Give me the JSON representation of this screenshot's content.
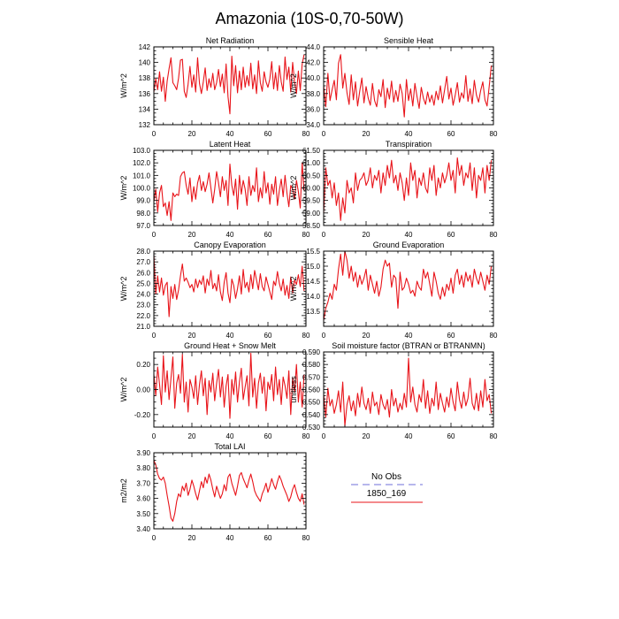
{
  "title": "Amazonia (10S-0,70-50W)",
  "colors": {
    "series": "#e8141a",
    "obs": "#9f9fe6",
    "axis": "#000000"
  },
  "legend": {
    "obs_label": "No Obs",
    "series_label": "1850_169",
    "placement": "below right panels"
  },
  "chart_data": [
    {
      "type": "line",
      "title": "Net Radiation",
      "ylabel": "W/m^2",
      "xlim": [
        0,
        80
      ],
      "ylim": [
        132,
        142
      ],
      "xticks": [
        0,
        20,
        40,
        60,
        80
      ],
      "yticks": [
        132,
        134,
        136,
        138,
        140,
        142
      ],
      "ytick_labels": [
        "132",
        "134",
        "136",
        "138",
        "140",
        "142"
      ],
      "series": [
        {
          "name": "1850_169",
          "values": [
            136.2,
            137.9,
            136.5,
            138.8,
            136.3,
            138.1,
            135.0,
            137.6,
            139.2,
            140.6,
            137.4,
            137.0,
            136.5,
            138.0,
            140.3,
            140.4,
            136.3,
            135.5,
            137.2,
            139.5,
            136.8,
            138.4,
            136.2,
            140.6,
            137.3,
            136.0,
            137.5,
            139.3,
            136.4,
            137.9,
            136.8,
            138.6,
            136.5,
            137.4,
            139.1,
            136.9,
            138.5,
            136.1,
            139.8,
            135.6,
            133.4,
            140.8,
            137.0,
            139.6,
            136.1,
            138.9,
            136.5,
            139.4,
            136.8,
            138.3,
            137.0,
            139.9,
            136.6,
            138.4,
            136.0,
            140.2,
            137.4,
            136.3,
            138.8,
            137.5,
            136.8,
            137.9,
            140.1,
            136.6,
            138.7,
            136.4,
            139.6,
            137.5,
            136.3,
            140.7,
            137.8,
            139.4,
            136.2,
            140.0,
            137.5,
            136.0,
            138.9,
            136.4,
            139.8,
            141.0
          ]
        }
      ]
    },
    {
      "type": "line",
      "title": "Sensible Heat",
      "ylabel": "W/m^2",
      "xlim": [
        0,
        80
      ],
      "ylim": [
        34,
        44
      ],
      "xticks": [
        0,
        20,
        40,
        60,
        80
      ],
      "yticks": [
        34,
        36,
        38,
        40,
        42,
        44
      ],
      "ytick_labels": [
        "34.0",
        "36.0",
        "38.0",
        "40.0",
        "42.0",
        "44.0"
      ],
      "series": [
        {
          "name": "1850_169",
          "values": [
            39.0,
            36.3,
            40.6,
            37.1,
            38.5,
            39.7,
            37.2,
            41.9,
            43.0,
            38.7,
            40.6,
            38.1,
            36.6,
            40.4,
            37.2,
            39.5,
            36.4,
            38.3,
            40.0,
            36.8,
            38.9,
            37.4,
            36.5,
            39.3,
            37.1,
            36.3,
            38.5,
            37.6,
            39.8,
            36.2,
            38.7,
            37.3,
            39.6,
            36.9,
            38.4,
            37.0,
            39.2,
            38.0,
            35.0,
            39.8,
            37.1,
            38.6,
            36.4,
            39.3,
            37.6,
            36.1,
            38.8,
            37.4,
            36.6,
            38.2,
            36.9,
            37.8,
            36.5,
            38.3,
            37.2,
            39.0,
            36.8,
            38.5,
            40.2,
            37.3,
            38.7,
            36.5,
            37.8,
            39.4,
            36.9,
            38.1,
            37.4,
            40.3,
            37.0,
            38.6,
            36.7,
            39.7,
            37.8,
            36.9,
            38.4,
            39.5,
            37.2,
            36.4,
            38.9,
            41.6
          ]
        }
      ]
    },
    {
      "type": "line",
      "title": "Latent Heat",
      "ylabel": "W/m^2",
      "xlim": [
        0,
        80
      ],
      "ylim": [
        97,
        103
      ],
      "xticks": [
        0,
        20,
        40,
        60,
        80
      ],
      "yticks": [
        97,
        98,
        99,
        100,
        101,
        102,
        103
      ],
      "ytick_labels": [
        "97.0",
        "98.0",
        "99.0",
        "100.0",
        "101.0",
        "102.0",
        "103.0"
      ],
      "series": [
        {
          "name": "1850_169",
          "values": [
            98.9,
            99.9,
            98.1,
            99.6,
            100.2,
            98.5,
            98.8,
            97.8,
            98.9,
            97.4,
            99.6,
            99.3,
            99.5,
            99.4,
            100.9,
            101.2,
            101.3,
            100.2,
            99.5,
            100.8,
            98.9,
            100.1,
            99.1,
            100.4,
            101.0,
            99.8,
            100.5,
            99.7,
            100.3,
            101.2,
            100.0,
            98.8,
            99.9,
            101.3,
            100.4,
            99.3,
            100.9,
            99.8,
            100.6,
            98.6,
            101.9,
            100.2,
            99.4,
            100.7,
            98.3,
            101.0,
            99.5,
            100.6,
            99.9,
            98.6,
            100.9,
            99.4,
            100.2,
            99.7,
            101.6,
            98.9,
            100.0,
            99.2,
            101.3,
            99.6,
            100.4,
            98.7,
            100.3,
            99.5,
            100.9,
            98.6,
            99.8,
            100.7,
            99.3,
            101.0,
            99.6,
            98.5,
            100.2,
            99.9,
            99.1,
            100.6,
            99.7,
            98.4,
            102.0,
            99.8
          ]
        }
      ]
    },
    {
      "type": "line",
      "title": "Transpiration",
      "ylabel": "W/m^2",
      "xlim": [
        0,
        80
      ],
      "ylim": [
        58.5,
        61.5
      ],
      "xticks": [
        0,
        20,
        40,
        60,
        80
      ],
      "yticks": [
        58.5,
        59.0,
        59.5,
        60.0,
        60.5,
        61.0,
        61.5
      ],
      "ytick_labels": [
        "58.50",
        "59.00",
        "59.50",
        "60.00",
        "60.50",
        "61.00",
        "61.50"
      ],
      "series": [
        {
          "name": "1850_169",
          "values": [
            59.0,
            60.8,
            60.1,
            60.3,
            59.6,
            60.2,
            59.3,
            59.8,
            58.7,
            59.6,
            59.0,
            60.3,
            59.8,
            60.0,
            59.4,
            60.6,
            59.9,
            60.3,
            60.4,
            60.6,
            60.1,
            60.3,
            60.8,
            60.0,
            60.5,
            60.3,
            60.7,
            59.8,
            60.6,
            60.1,
            60.9,
            60.4,
            61.1,
            60.2,
            60.5,
            59.9,
            60.6,
            60.2,
            59.5,
            60.4,
            59.7,
            61.0,
            60.3,
            60.7,
            59.6,
            60.4,
            60.1,
            60.6,
            60.0,
            59.8,
            60.8,
            60.3,
            60.9,
            59.7,
            60.4,
            60.0,
            60.6,
            60.2,
            60.5,
            61.0,
            60.3,
            60.7,
            59.8,
            61.2,
            60.5,
            60.9,
            60.1,
            60.6,
            60.4,
            61.0,
            59.9,
            60.8,
            59.6,
            60.5,
            60.3,
            60.8,
            59.8,
            60.9,
            60.3,
            61.1
          ]
        }
      ]
    },
    {
      "type": "line",
      "title": "Canopy Evaporation",
      "ylabel": "W/m^2",
      "xlim": [
        0,
        80
      ],
      "ylim": [
        21,
        28
      ],
      "xticks": [
        0,
        20,
        40,
        60,
        80
      ],
      "yticks": [
        21,
        22,
        23,
        24,
        25,
        26,
        27,
        28
      ],
      "ytick_labels": [
        "21.0",
        "22.0",
        "23.0",
        "24.0",
        "25.0",
        "26.0",
        "27.0",
        "28.0"
      ],
      "series": [
        {
          "name": "1850_169",
          "values": [
            27.6,
            24.0,
            25.7,
            24.2,
            25.5,
            23.9,
            24.8,
            25.1,
            21.9,
            24.7,
            23.6,
            24.9,
            23.5,
            24.4,
            25.7,
            26.8,
            25.2,
            25.5,
            25.1,
            24.6,
            24.9,
            24.2,
            25.4,
            24.6,
            25.3,
            24.9,
            25.7,
            24.1,
            25.4,
            24.8,
            26.2,
            24.5,
            25.0,
            24.3,
            25.8,
            24.2,
            23.4,
            25.1,
            26.0,
            24.1,
            23.2,
            25.4,
            24.8,
            23.6,
            24.5,
            25.7,
            24.0,
            26.3,
            24.6,
            25.1,
            24.2,
            25.8,
            24.5,
            26.2,
            25.3,
            24.4,
            25.9,
            24.7,
            24.3,
            25.6,
            24.9,
            24.2,
            23.5,
            25.2,
            24.8,
            26.1,
            25.0,
            24.3,
            25.4,
            23.9,
            24.8,
            23.6,
            25.6,
            24.1,
            25.3,
            24.9,
            25.8,
            24.7,
            26.6,
            24.3
          ]
        }
      ]
    },
    {
      "type": "line",
      "title": "Ground Evaporation",
      "ylabel": "W/m^2",
      "xlim": [
        0,
        80
      ],
      "ylim": [
        13,
        15.5
      ],
      "xticks": [
        0,
        20,
        40,
        60,
        80
      ],
      "yticks": [
        13.5,
        14.0,
        14.5,
        15.0,
        15.5
      ],
      "ytick_labels": [
        "13.5",
        "14.0",
        "14.5",
        "15.0",
        "15.5"
      ],
      "series": [
        {
          "name": "1850_169",
          "values": [
            13.2,
            13.6,
            13.8,
            14.1,
            13.9,
            14.4,
            14.2,
            14.9,
            15.4,
            14.7,
            15.5,
            15.2,
            14.6,
            15.0,
            14.5,
            14.8,
            14.3,
            14.7,
            14.4,
            14.6,
            14.9,
            14.2,
            14.7,
            14.4,
            14.1,
            14.5,
            14.0,
            14.3,
            14.9,
            15.2,
            15.0,
            15.1,
            14.3,
            14.7,
            14.6,
            13.6,
            14.8,
            14.2,
            14.3,
            14.6,
            14.4,
            14.1,
            14.2,
            14.0,
            14.5,
            14.3,
            14.2,
            14.9,
            14.6,
            14.8,
            14.4,
            14.0,
            14.8,
            14.5,
            14.1,
            13.9,
            14.3,
            14.0,
            14.4,
            14.2,
            14.6,
            14.1,
            14.7,
            14.9,
            14.4,
            14.7,
            14.3,
            14.8,
            14.5,
            14.7,
            14.3,
            14.9,
            14.6,
            14.4,
            14.8,
            14.5,
            14.2,
            14.7,
            14.4,
            15.0
          ]
        }
      ]
    },
    {
      "type": "line",
      "title": "Ground Heat + Snow Melt",
      "ylabel": "W/m^2",
      "xlim": [
        0,
        80
      ],
      "ylim": [
        -0.3,
        0.3
      ],
      "xticks": [
        0,
        20,
        40,
        60,
        80
      ],
      "yticks": [
        -0.2,
        0.0,
        0.2
      ],
      "ytick_labels": [
        "-0.20",
        "0.00",
        "0.20"
      ],
      "series": [
        {
          "name": "1850_169",
          "values": [
            0.12,
            -0.05,
            0.18,
            0.04,
            -0.12,
            0.27,
            -0.02,
            0.15,
            -0.08,
            0.09,
            0.26,
            -0.15,
            0.05,
            0.12,
            -0.03,
            0.28,
            -0.1,
            0.06,
            -0.18,
            0.08,
            0.02,
            -0.07,
            0.11,
            -0.12,
            0.04,
            0.15,
            -0.05,
            0.09,
            -0.2,
            0.07,
            -0.02,
            0.13,
            -0.09,
            0.05,
            0.16,
            -0.06,
            0.1,
            -0.14,
            0.03,
            0.12,
            -0.23,
            0.08,
            -0.04,
            0.14,
            -0.1,
            0.06,
            0.17,
            -0.08,
            0.02,
            0.11,
            -0.13,
            0.29,
            -0.06,
            0.09,
            -0.15,
            0.05,
            0.13,
            -0.03,
            0.1,
            -0.17,
            0.06,
            0.0,
            0.12,
            -0.09,
            0.18,
            -0.04,
            0.08,
            -0.12,
            0.1,
            0.03,
            -0.07,
            0.15,
            -0.2,
            0.09,
            -0.02,
            0.2,
            -0.1,
            0.06,
            -0.14,
            0.12
          ]
        }
      ]
    },
    {
      "type": "line",
      "title": "Soil moisture factor (BTRAN or BTRANMN)",
      "ylabel": "unitless",
      "xlim": [
        0,
        80
      ],
      "ylim": [
        0.53,
        0.59
      ],
      "xticks": [
        0,
        20,
        40,
        60,
        80
      ],
      "yticks": [
        0.53,
        0.54,
        0.55,
        0.56,
        0.57,
        0.58,
        0.59
      ],
      "ytick_labels": [
        "0.530",
        "0.540",
        "0.550",
        "0.560",
        "0.570",
        "0.580",
        "0.590"
      ],
      "series": [
        {
          "name": "1850_169",
          "values": [
            0.556,
            0.538,
            0.561,
            0.547,
            0.552,
            0.541,
            0.548,
            0.559,
            0.542,
            0.566,
            0.531,
            0.548,
            0.555,
            0.543,
            0.551,
            0.539,
            0.557,
            0.546,
            0.562,
            0.549,
            0.544,
            0.553,
            0.541,
            0.558,
            0.547,
            0.55,
            0.54,
            0.556,
            0.548,
            0.544,
            0.552,
            0.538,
            0.56,
            0.547,
            0.553,
            0.542,
            0.549,
            0.544,
            0.557,
            0.546,
            0.585,
            0.55,
            0.562,
            0.548,
            0.542,
            0.556,
            0.55,
            0.568,
            0.545,
            0.559,
            0.541,
            0.553,
            0.547,
            0.566,
            0.544,
            0.557,
            0.549,
            0.542,
            0.554,
            0.546,
            0.561,
            0.55,
            0.543,
            0.566,
            0.552,
            0.545,
            0.558,
            0.547,
            0.553,
            0.569,
            0.549,
            0.544,
            0.557,
            0.543,
            0.559,
            0.546,
            0.568,
            0.551,
            0.556,
            0.541
          ]
        }
      ]
    },
    {
      "type": "line",
      "title": "Total LAI",
      "ylabel": "m2/m2",
      "xlim": [
        0,
        80
      ],
      "ylim": [
        3.4,
        3.9
      ],
      "xticks": [
        0,
        20,
        40,
        60,
        80
      ],
      "yticks": [
        3.4,
        3.5,
        3.6,
        3.7,
        3.8,
        3.9
      ],
      "ytick_labels": [
        "3.40",
        "3.50",
        "3.60",
        "3.70",
        "3.80",
        "3.90"
      ],
      "series": [
        {
          "name": "1850_169",
          "values": [
            3.85,
            3.82,
            3.76,
            3.73,
            3.72,
            3.74,
            3.7,
            3.62,
            3.55,
            3.47,
            3.45,
            3.5,
            3.58,
            3.63,
            3.61,
            3.68,
            3.65,
            3.7,
            3.62,
            3.66,
            3.72,
            3.68,
            3.63,
            3.59,
            3.65,
            3.71,
            3.67,
            3.74,
            3.7,
            3.76,
            3.72,
            3.66,
            3.61,
            3.68,
            3.64,
            3.6,
            3.63,
            3.69,
            3.65,
            3.74,
            3.76,
            3.7,
            3.66,
            3.62,
            3.68,
            3.75,
            3.77,
            3.73,
            3.7,
            3.67,
            3.72,
            3.76,
            3.71,
            3.65,
            3.62,
            3.6,
            3.58,
            3.63,
            3.66,
            3.7,
            3.64,
            3.68,
            3.73,
            3.69,
            3.66,
            3.71,
            3.75,
            3.72,
            3.68,
            3.65,
            3.62,
            3.58,
            3.61,
            3.66,
            3.69,
            3.64,
            3.6,
            3.58,
            3.63,
            3.56
          ]
        }
      ]
    }
  ]
}
